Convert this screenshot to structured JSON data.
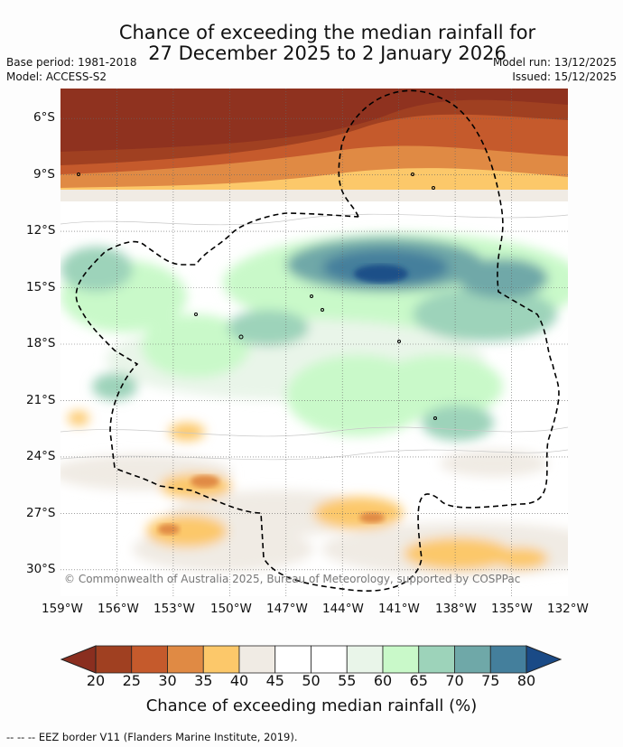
{
  "title": {
    "line1": "Chance of exceeding the median rainfall for",
    "line2": "27 December 2025 to 2 January 2026"
  },
  "meta": {
    "base_period": "Base period: 1981-2018",
    "model": "Model: ACCESS-S2",
    "model_run": "Model run: 13/12/2025",
    "issued": "Issued: 15/12/2025"
  },
  "copyright": "© Commonwealth of Australia 2025, Bureau of Meteorology, supported by COSPPac",
  "axes": {
    "lat_labels": [
      "6°S",
      "9°S",
      "12°S",
      "15°S",
      "18°S",
      "21°S",
      "24°S",
      "27°S",
      "30°S"
    ],
    "lon_labels": [
      "159°W",
      "156°W",
      "153°W",
      "150°W",
      "147°W",
      "144°W",
      "141°W",
      "138°W",
      "135°W",
      "132°W"
    ]
  },
  "colorbar": {
    "ticks": [
      "20",
      "25",
      "30",
      "35",
      "40",
      "45",
      "50",
      "55",
      "60",
      "65",
      "70",
      "75",
      "80"
    ],
    "colors": [
      "#a04021",
      "#c55a2c",
      "#e08a44",
      "#fcc86a",
      "#f0ebe4",
      "#ffffff",
      "#ffffff",
      "#e9f5e9",
      "#c9f9c9",
      "#9dd3ba",
      "#6fa8a8",
      "#447f9c"
    ],
    "under_color": "#8a2e1f",
    "over_color": "#1a4a86",
    "label": "Chance of exceeding median rainfall (%)"
  },
  "footnote": "--  --  -- EEZ border V11 (Flanders Marine Institute, 2019)."
}
